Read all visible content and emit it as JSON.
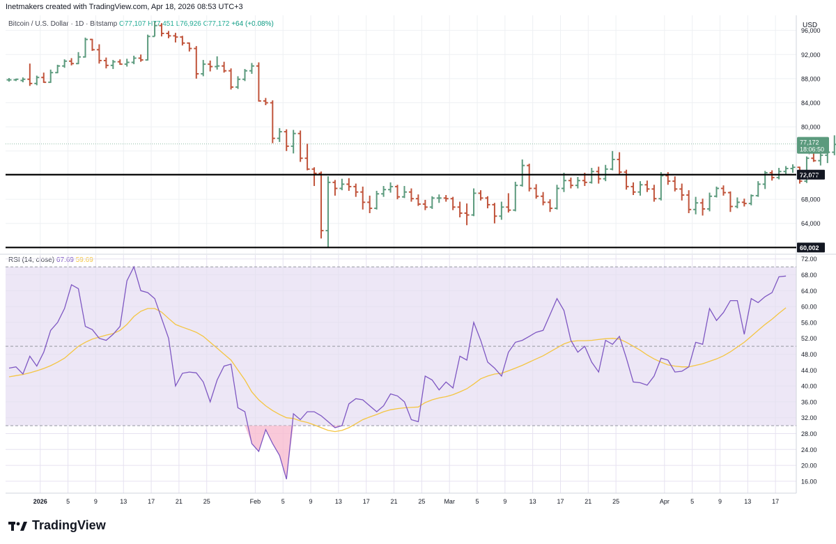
{
  "header": {
    "caption": "Inetmakers created with TradingView.com, Apr 18, 2026 08:53 UTC+3"
  },
  "legend": {
    "symbol": "Bitcoin / U.S. Dollar · 1D · Bitstamp",
    "open": "O77,107",
    "high": "H77,451",
    "low": "L76,926",
    "close": "C77,172",
    "change": "+64 (+0.08%)"
  },
  "rsi_legend": {
    "label": "RSI (14, close)",
    "rsi": "67.69",
    "ma": "59.69"
  },
  "currency": "USD",
  "branding": {
    "logo_text": "TradingView"
  },
  "colors": {
    "up": "#5b9a7d",
    "down": "#c0533a",
    "rsi_line": "#7e57c2",
    "rsi_ma": "#f4c542",
    "rsi_band": "#ede7f6",
    "level_line": "#000000",
    "price_tag": "#5b9a7d"
  },
  "chart_data": [
    {
      "type": "ohlc",
      "title": "Bitcoin / U.S. Dollar · 1D · Bitstamp",
      "ylabel": "USD",
      "ylim": [
        59000,
        98500
      ],
      "y_ticks": [
        64000,
        68000,
        72000,
        76000,
        80000,
        84000,
        88000,
        92000,
        96000
      ],
      "y_tick_labels": [
        "64,000",
        "68,000",
        "72,000",
        "76,000",
        "80,000",
        "84,000",
        "88,000",
        "92,000",
        "96,000"
      ],
      "x_ticks": [
        {
          "label": "2026",
          "date": "2026-01-01"
        },
        {
          "label": "5",
          "date": "2026-01-05"
        },
        {
          "label": "9",
          "date": "2026-01-09"
        },
        {
          "label": "13",
          "date": "2026-01-13"
        },
        {
          "label": "17",
          "date": "2026-01-17"
        },
        {
          "label": "21",
          "date": "2026-01-21"
        },
        {
          "label": "25",
          "date": "2026-01-25"
        },
        {
          "label": "Feb",
          "date": "2026-02-01"
        },
        {
          "label": "5",
          "date": "2026-02-05"
        },
        {
          "label": "9",
          "date": "2026-02-09"
        },
        {
          "label": "13",
          "date": "2026-02-13"
        },
        {
          "label": "17",
          "date": "2026-02-17"
        },
        {
          "label": "21",
          "date": "2026-02-21"
        },
        {
          "label": "25",
          "date": "2026-02-25"
        },
        {
          "label": "Mar",
          "date": "2026-03-01"
        },
        {
          "label": "5",
          "date": "2026-03-05"
        },
        {
          "label": "9",
          "date": "2026-03-09"
        },
        {
          "label": "13",
          "date": "2026-03-13"
        },
        {
          "label": "17",
          "date": "2026-03-17"
        },
        {
          "label": "21",
          "date": "2026-03-21"
        },
        {
          "label": "25",
          "date": "2026-03-25"
        },
        {
          "label": "Apr",
          "date": "2026-04-01"
        },
        {
          "label": "5",
          "date": "2026-04-05"
        },
        {
          "label": "9",
          "date": "2026-04-09"
        },
        {
          "label": "13",
          "date": "2026-04-13"
        },
        {
          "label": "17",
          "date": "2026-04-17"
        }
      ],
      "x_range": [
        "2025-12-27",
        "2026-04-20"
      ],
      "start_date": "2025-12-27",
      "ohlc": [
        [
          87800,
          88100,
          87500,
          87800
        ],
        [
          87800,
          88000,
          87600,
          87900
        ],
        [
          87700,
          88200,
          87400,
          87900
        ],
        [
          87900,
          90500,
          86800,
          87200
        ],
        [
          87200,
          88500,
          86900,
          88200
        ],
        [
          88200,
          89000,
          87300,
          87400
        ],
        [
          87400,
          89500,
          87300,
          89000
        ],
        [
          89000,
          90300,
          88900,
          90100
        ],
        [
          90100,
          91200,
          89800,
          90900
        ],
        [
          90900,
          91400,
          90200,
          90500
        ],
        [
          90500,
          92400,
          90400,
          91600
        ],
        [
          91600,
          94800,
          91500,
          94500
        ],
        [
          94500,
          94600,
          92600,
          92800
        ],
        [
          92800,
          93700,
          90500,
          91000
        ],
        [
          91000,
          91500,
          89700,
          90200
        ],
        [
          90200,
          91100,
          89600,
          90800
        ],
        [
          90800,
          91200,
          90300,
          90400
        ],
        [
          90400,
          91300,
          90000,
          90700
        ],
        [
          90700,
          91800,
          90400,
          91400
        ],
        [
          91400,
          92000,
          90800,
          91100
        ],
        [
          91100,
          95300,
          91000,
          95000
        ],
        [
          95000,
          97500,
          95000,
          96800
        ],
        [
          96800,
          97200,
          95000,
          95500
        ],
        [
          95500,
          95900,
          94700,
          95100
        ],
        [
          95100,
          95600,
          94000,
          94900
        ],
        [
          94900,
          95100,
          93500,
          93900
        ],
        [
          93900,
          94000,
          92500,
          93000
        ],
        [
          93000,
          93400,
          88000,
          88800
        ],
        [
          88800,
          91100,
          88400,
          90400
        ],
        [
          90400,
          91000,
          89200,
          90000
        ],
        [
          90000,
          91700,
          89500,
          90100
        ],
        [
          90100,
          90800,
          89000,
          89300
        ],
        [
          89300,
          89700,
          86200,
          86600
        ],
        [
          86600,
          88400,
          86300,
          87900
        ],
        [
          87900,
          89600,
          87600,
          89300
        ],
        [
          89300,
          90600,
          88800,
          90100
        ],
        [
          90100,
          90700,
          84200,
          84300
        ],
        [
          84300,
          84800,
          83600,
          84000
        ],
        [
          84000,
          84400,
          77300,
          78100
        ],
        [
          78100,
          79800,
          77500,
          79200
        ],
        [
          79200,
          79600,
          76000,
          76800
        ],
        [
          76800,
          79500,
          75600,
          78900
        ],
        [
          78900,
          79400,
          74200,
          74800
        ],
        [
          74800,
          77200,
          72800,
          73000
        ],
        [
          73000,
          73300,
          70200,
          72300
        ],
        [
          72300,
          72600,
          61500,
          62800
        ],
        [
          62800,
          71800,
          60000,
          70800
        ],
        [
          70800,
          71200,
          68600,
          69800
        ],
        [
          69800,
          71400,
          69500,
          70500
        ],
        [
          70500,
          71500,
          69400,
          70100
        ],
        [
          70100,
          70600,
          68400,
          69200
        ],
        [
          69200,
          70100,
          66300,
          67500
        ],
        [
          67500,
          68600,
          65700,
          66500
        ],
        [
          66500,
          69400,
          66300,
          68900
        ],
        [
          68900,
          70200,
          68400,
          69600
        ],
        [
          69600,
          70800,
          69100,
          70100
        ],
        [
          70100,
          70400,
          68000,
          68400
        ],
        [
          68400,
          70200,
          68200,
          69200
        ],
        [
          69200,
          69800,
          67600,
          68100
        ],
        [
          68100,
          68800,
          66900,
          67200
        ],
        [
          67200,
          67900,
          66200,
          66700
        ],
        [
          66700,
          68500,
          66400,
          68200
        ],
        [
          68200,
          68800,
          67400,
          68200
        ],
        [
          68200,
          68700,
          67600,
          68100
        ],
        [
          68100,
          68400,
          66200,
          66700
        ],
        [
          66700,
          67600,
          65000,
          65700
        ],
        [
          65700,
          67300,
          63700,
          65400
        ],
        [
          65400,
          69800,
          65200,
          69000
        ],
        [
          69000,
          69500,
          67800,
          68200
        ],
        [
          68200,
          68500,
          66500,
          67100
        ],
        [
          67100,
          67400,
          64000,
          65200
        ],
        [
          65200,
          67600,
          64600,
          66700
        ],
        [
          66700,
          69000,
          65800,
          66200
        ],
        [
          66200,
          70900,
          66000,
          70300
        ],
        [
          70300,
          74600,
          70100,
          73600
        ],
        [
          73600,
          73900,
          69300,
          69800
        ],
        [
          69800,
          70500,
          68100,
          68500
        ],
        [
          68500,
          69200,
          67000,
          67500
        ],
        [
          67500,
          68000,
          65900,
          66500
        ],
        [
          66500,
          70400,
          66300,
          69800
        ],
        [
          69800,
          72400,
          69200,
          71100
        ],
        [
          71100,
          71600,
          69800,
          70300
        ],
        [
          70300,
          71700,
          69800,
          71100
        ],
        [
          71100,
          72400,
          70200,
          70800
        ],
        [
          70800,
          73200,
          70600,
          72600
        ],
        [
          72600,
          73400,
          70600,
          71400
        ],
        [
          71400,
          73700,
          71000,
          73000
        ],
        [
          73000,
          76000,
          72800,
          74600
        ],
        [
          74600,
          75800,
          72100,
          72500
        ],
        [
          72500,
          72900,
          69600,
          70100
        ],
        [
          70100,
          70800,
          68700,
          69200
        ],
        [
          69200,
          71000,
          68600,
          70400
        ],
        [
          70400,
          71100,
          69200,
          69700
        ],
        [
          69700,
          70400,
          67600,
          68100
        ],
        [
          68100,
          72500,
          67800,
          71900
        ],
        [
          71900,
          72500,
          70400,
          71000
        ],
        [
          71000,
          71800,
          69300,
          69700
        ],
        [
          69700,
          70600,
          67800,
          68700
        ],
        [
          68700,
          69500,
          65700,
          66300
        ],
        [
          66300,
          68400,
          65500,
          67400
        ],
        [
          67400,
          68100,
          65300,
          66400
        ],
        [
          66400,
          69100,
          66000,
          68500
        ],
        [
          68500,
          70100,
          68300,
          69800
        ],
        [
          69800,
          70300,
          68600,
          69100
        ],
        [
          69100,
          69300,
          65900,
          66800
        ],
        [
          66800,
          68300,
          66500,
          67500
        ],
        [
          67500,
          68100,
          66800,
          67300
        ],
        [
          67300,
          68800,
          67000,
          68600
        ],
        [
          68600,
          71000,
          68400,
          70500
        ],
        [
          70500,
          72700,
          69700,
          72400
        ],
        [
          72400,
          72800,
          71100,
          71600
        ],
        [
          71600,
          73200,
          71300,
          72600
        ],
        [
          72600,
          73500,
          72200,
          73100
        ],
        [
          73100,
          73800,
          72400,
          73300
        ],
        [
          73300,
          73400,
          70600,
          71000
        ],
        [
          71000,
          75100,
          70700,
          74800
        ],
        [
          74800,
          76100,
          74200,
          74400
        ],
        [
          74400,
          75700,
          73600,
          75300
        ],
        [
          75300,
          76200,
          74000,
          75800
        ],
        [
          75800,
          78600,
          75300,
          77100
        ],
        [
          77100,
          77451,
          76926,
          77172
        ]
      ],
      "price_lines": [
        {
          "value": 72077,
          "label": "72,077"
        },
        {
          "value": 60002,
          "label": "60,002"
        }
      ],
      "last_price": {
        "value": 77172,
        "label": "77,172",
        "countdown": "18:06:50"
      }
    },
    {
      "type": "line",
      "title": "RSI (14, close)",
      "ylim": [
        13,
        73
      ],
      "y_ticks": [
        16,
        20,
        24,
        28,
        32,
        36,
        40,
        44,
        48,
        52,
        56,
        60,
        64,
        68,
        72
      ],
      "y_tick_labels": [
        "16.00",
        "20.00",
        "24.00",
        "28.00",
        "32.00",
        "36.00",
        "40.00",
        "44.00",
        "48.00",
        "52.00",
        "56.00",
        "60.00",
        "64.00",
        "68.00",
        "72.00"
      ],
      "bands": {
        "upper": 70,
        "middle": 50,
        "lower": 30
      },
      "series": [
        {
          "name": "RSI",
          "color": "#7e57c2",
          "values": [
            44.5,
            44.8,
            43.0,
            47.5,
            45.0,
            48.5,
            54.0,
            56.0,
            59.5,
            65.5,
            64.5,
            55.0,
            54.2,
            52.0,
            51.5,
            53.0,
            55.0,
            66.5,
            70.0,
            64.0,
            63.5,
            62.0,
            57.0,
            52.0,
            40.0,
            43.2,
            43.5,
            43.3,
            41.0,
            36.0,
            41.5,
            45.0,
            45.5,
            34.5,
            33.5,
            25.5,
            23.5,
            29.0,
            25.5,
            22.5,
            16.5,
            33.0,
            31.5,
            33.5,
            33.5,
            32.5,
            31.0,
            29.5,
            30.0,
            35.5,
            36.8,
            36.5,
            35.0,
            33.5,
            35.0,
            38.0,
            37.5,
            36.0,
            31.5,
            31.0,
            42.5,
            41.5,
            39.0,
            41.0,
            39.5,
            47.5,
            46.5,
            56.0,
            51.5,
            46.0,
            44.5,
            42.5,
            48.5,
            51.0,
            51.5,
            52.5,
            53.5,
            54.0,
            58.0,
            62.0,
            59.0,
            51.5,
            48.5,
            50.0,
            46.0,
            43.5,
            51.5,
            50.5,
            52.5,
            47.0,
            41.0,
            40.8,
            40.2,
            42.5,
            47.0,
            46.5,
            43.5,
            43.7,
            44.8,
            51.0,
            50.5,
            59.5,
            56.5,
            58.5,
            61.5,
            61.5,
            53.0,
            62.0,
            61.0,
            62.5,
            63.5,
            67.5,
            67.69
          ]
        },
        {
          "name": "RSI-based MA",
          "color": "#f4c542",
          "values": [
            42.3,
            42.6,
            42.9,
            43.3,
            43.8,
            44.4,
            45.1,
            46.0,
            47.0,
            48.5,
            50.0,
            51.0,
            51.8,
            52.3,
            52.8,
            53.2,
            54.0,
            55.5,
            57.5,
            58.8,
            59.5,
            59.5,
            58.6,
            57.0,
            55.5,
            54.8,
            54.2,
            53.5,
            52.5,
            51.0,
            49.5,
            48.0,
            46.5,
            44.0,
            41.5,
            38.5,
            36.5,
            35.0,
            33.8,
            32.8,
            32.0,
            31.8,
            31.2,
            30.8,
            30.2,
            29.5,
            28.8,
            28.5,
            28.8,
            29.5,
            30.5,
            31.5,
            32.2,
            32.8,
            33.5,
            34.0,
            34.3,
            34.5,
            34.6,
            34.7,
            35.8,
            36.5,
            37.0,
            37.3,
            37.8,
            38.5,
            39.3,
            40.5,
            41.8,
            42.5,
            43.0,
            43.2,
            43.8,
            44.5,
            45.2,
            46.0,
            46.8,
            47.6,
            48.6,
            49.6,
            50.6,
            51.2,
            51.4,
            51.4,
            51.5,
            51.7,
            51.9,
            52.0,
            51.8,
            51.0,
            50.0,
            49.0,
            47.8,
            46.8,
            46.0,
            45.3,
            45.0,
            44.8,
            44.8,
            45.2,
            45.6,
            46.2,
            46.8,
            47.6,
            48.6,
            49.8,
            51.0,
            52.5,
            54.0,
            55.5,
            56.8,
            58.3,
            59.69
          ]
        }
      ]
    }
  ]
}
